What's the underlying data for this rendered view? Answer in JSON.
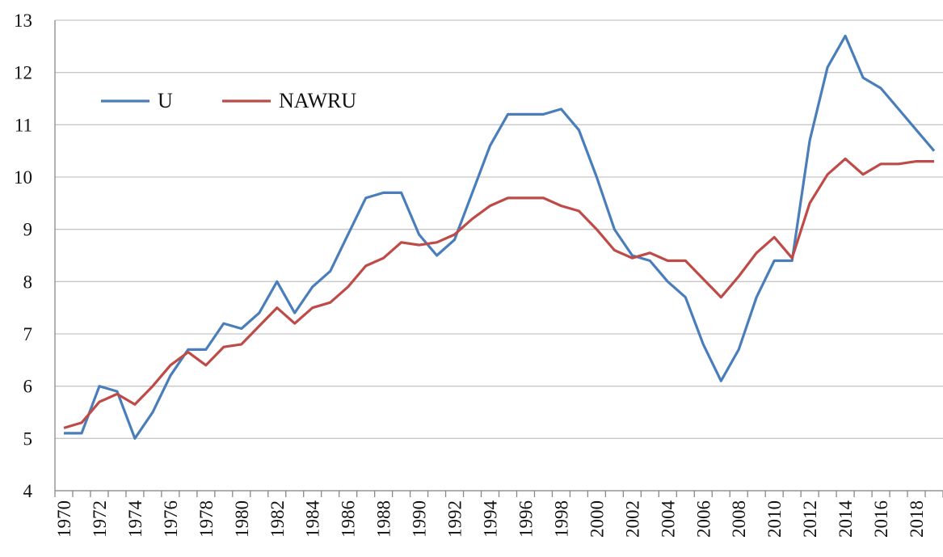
{
  "chart_data": {
    "type": "line",
    "categories": [
      "1970",
      null,
      "1972",
      null,
      "1974",
      null,
      "1976",
      null,
      "1978",
      null,
      "1980",
      null,
      "1982",
      null,
      "1984",
      null,
      "1986",
      null,
      "1988",
      null,
      "1990",
      null,
      "1992",
      null,
      "1994",
      null,
      "1996",
      null,
      "1998",
      null,
      "2000",
      null,
      "2002",
      null,
      "2004",
      null,
      "2006",
      null,
      "2008",
      null,
      "2010",
      null,
      "2012",
      null,
      "2014",
      null,
      "2016",
      null,
      "2018",
      null
    ],
    "series": [
      {
        "name": "U",
        "color": "#4a7ebb",
        "values": [
          5.1,
          5.1,
          6.0,
          5.9,
          5.0,
          5.5,
          6.2,
          6.7,
          6.7,
          7.2,
          7.1,
          7.4,
          8.0,
          7.4,
          7.9,
          8.2,
          8.9,
          9.6,
          9.7,
          9.7,
          8.9,
          8.5,
          8.8,
          9.7,
          10.6,
          11.2,
          11.2,
          11.2,
          11.3,
          10.9,
          10.0,
          9.0,
          8.5,
          8.4,
          8.0,
          7.7,
          6.8,
          6.1,
          6.7,
          7.7,
          8.4,
          8.4,
          10.7,
          12.1,
          12.7,
          11.9,
          11.7,
          11.3,
          10.9,
          10.5
        ]
      },
      {
        "name": "NAWRU",
        "color": "#be4b48",
        "values": [
          5.2,
          5.3,
          5.7,
          5.85,
          5.65,
          6.0,
          6.4,
          6.65,
          6.4,
          6.75,
          6.8,
          7.15,
          7.5,
          7.2,
          7.5,
          7.6,
          7.9,
          8.3,
          8.45,
          8.75,
          8.7,
          8.75,
          8.9,
          9.2,
          9.45,
          9.6,
          9.6,
          9.6,
          9.45,
          9.35,
          9.0,
          8.6,
          8.45,
          8.55,
          8.4,
          8.4,
          8.05,
          7.7,
          8.1,
          8.55,
          8.85,
          8.45,
          9.5,
          10.05,
          10.35,
          10.05,
          10.25,
          10.25,
          10.3,
          10.3
        ]
      }
    ],
    "ylim": [
      4,
      13
    ],
    "yticks": [
      4,
      5,
      6,
      7,
      8,
      9,
      10,
      11,
      12,
      13
    ],
    "grid": true,
    "legend": "upper left"
  }
}
